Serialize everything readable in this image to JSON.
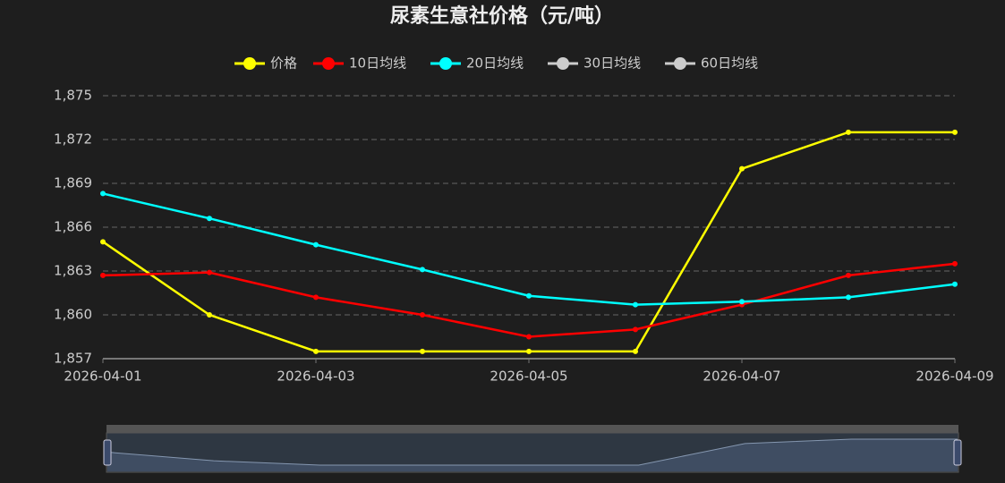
{
  "chart_data": {
    "type": "line",
    "title": "尿素生意社价格（元/吨）",
    "x": [
      "2026-04-01",
      "2026-04-02",
      "2026-04-03",
      "2026-04-04",
      "2026-04-05",
      "2026-04-06",
      "2026-04-07",
      "2026-04-08",
      "2026-04-09"
    ],
    "xticks": [
      "2026-04-01",
      "2026-04-03",
      "2026-04-05",
      "2026-04-07",
      "2026-04-09"
    ],
    "series": [
      {
        "name": "价格",
        "color": "#ffff00",
        "values": [
          1865,
          1860,
          1857.5,
          1857.5,
          1857.5,
          1857.5,
          1870,
          1872.5,
          1872.5
        ]
      },
      {
        "name": "10日均线",
        "color": "#ff0000",
        "values": [
          1862.7,
          1862.9,
          1861.2,
          1860,
          1858.5,
          1859,
          1860.7,
          1862.7,
          1863.5
        ]
      },
      {
        "name": "20日均线",
        "color": "#00ffff",
        "values": [
          1868.3,
          1866.6,
          1864.8,
          1863.1,
          1861.3,
          1860.7,
          1860.9,
          1861.2,
          1862.1
        ]
      },
      {
        "name": "30日均线",
        "color": "#cccccc",
        "values": [
          null,
          null,
          null,
          null,
          null,
          null,
          null,
          null,
          null
        ]
      },
      {
        "name": "60日均线",
        "color": "#cccccc",
        "values": [
          null,
          null,
          null,
          null,
          null,
          null,
          null,
          null,
          null
        ]
      }
    ],
    "ylim": [
      1857,
      1875
    ],
    "yticks": [
      {
        "value": 1857,
        "label": "1,857"
      },
      {
        "value": 1860,
        "label": "1,860"
      },
      {
        "value": 1863,
        "label": "1,863"
      },
      {
        "value": 1866,
        "label": "1,866"
      },
      {
        "value": 1869,
        "label": "1,869"
      },
      {
        "value": 1872,
        "label": "1,872"
      },
      {
        "value": 1875,
        "label": "1,875"
      }
    ],
    "grid": true,
    "legend": "top"
  }
}
